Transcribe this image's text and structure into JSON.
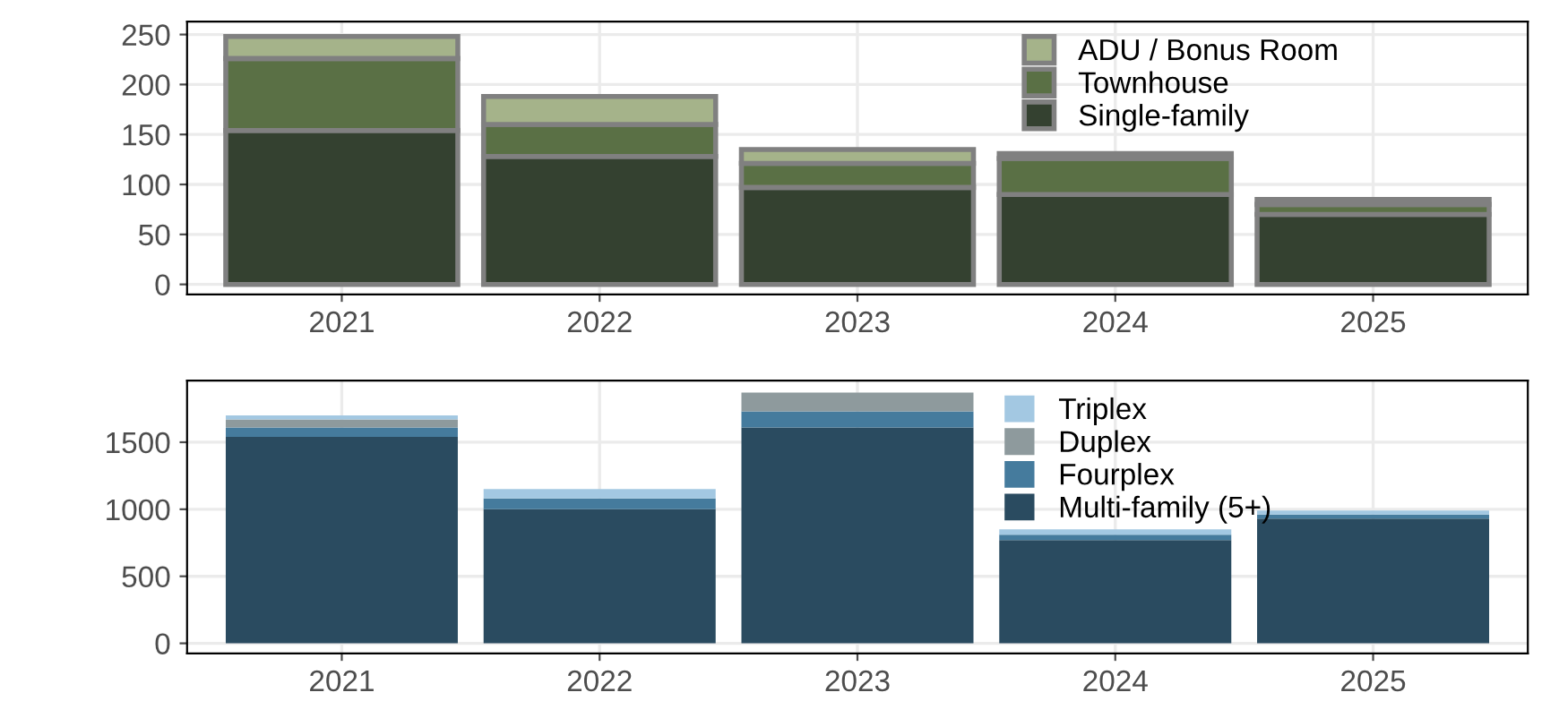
{
  "chart_data": [
    {
      "type": "bar",
      "stacked": true,
      "categories": [
        "2021",
        "2022",
        "2023",
        "2024",
        "2025"
      ],
      "series": [
        {
          "name": "Single-family",
          "color": "#344130",
          "values": [
            154,
            128,
            97,
            90,
            70
          ]
        },
        {
          "name": "Townhouse",
          "color": "#5a7045",
          "values": [
            72,
            32,
            24,
            36,
            10
          ]
        },
        {
          "name": "ADU / Bonus Room",
          "color": "#a5b38a",
          "values": [
            22,
            28,
            14,
            5,
            5
          ]
        }
      ],
      "ylim": [
        -10,
        263
      ],
      "yticks": [
        0,
        50,
        100,
        150,
        200,
        250
      ],
      "grid": true,
      "legend": "top right"
    },
    {
      "type": "bar",
      "stacked": true,
      "categories": [
        "2021",
        "2022",
        "2023",
        "2024",
        "2025"
      ],
      "series": [
        {
          "name": "Multi-family (5+)",
          "color": "#2a4b60",
          "values": [
            1540,
            1000,
            1610,
            770,
            930
          ]
        },
        {
          "name": "Fourplex",
          "color": "#457b9d",
          "values": [
            70,
            80,
            120,
            40,
            30
          ]
        },
        {
          "name": "Duplex",
          "color": "#8e9a9d",
          "values": [
            60,
            0,
            140,
            0,
            0
          ]
        },
        {
          "name": "Triplex",
          "color": "#a3c8e2",
          "values": [
            30,
            70,
            0,
            40,
            30
          ]
        }
      ],
      "ylim": [
        -75,
        1960
      ],
      "yticks": [
        0,
        500,
        1000,
        1500
      ],
      "grid": true,
      "legend": "top right"
    }
  ]
}
